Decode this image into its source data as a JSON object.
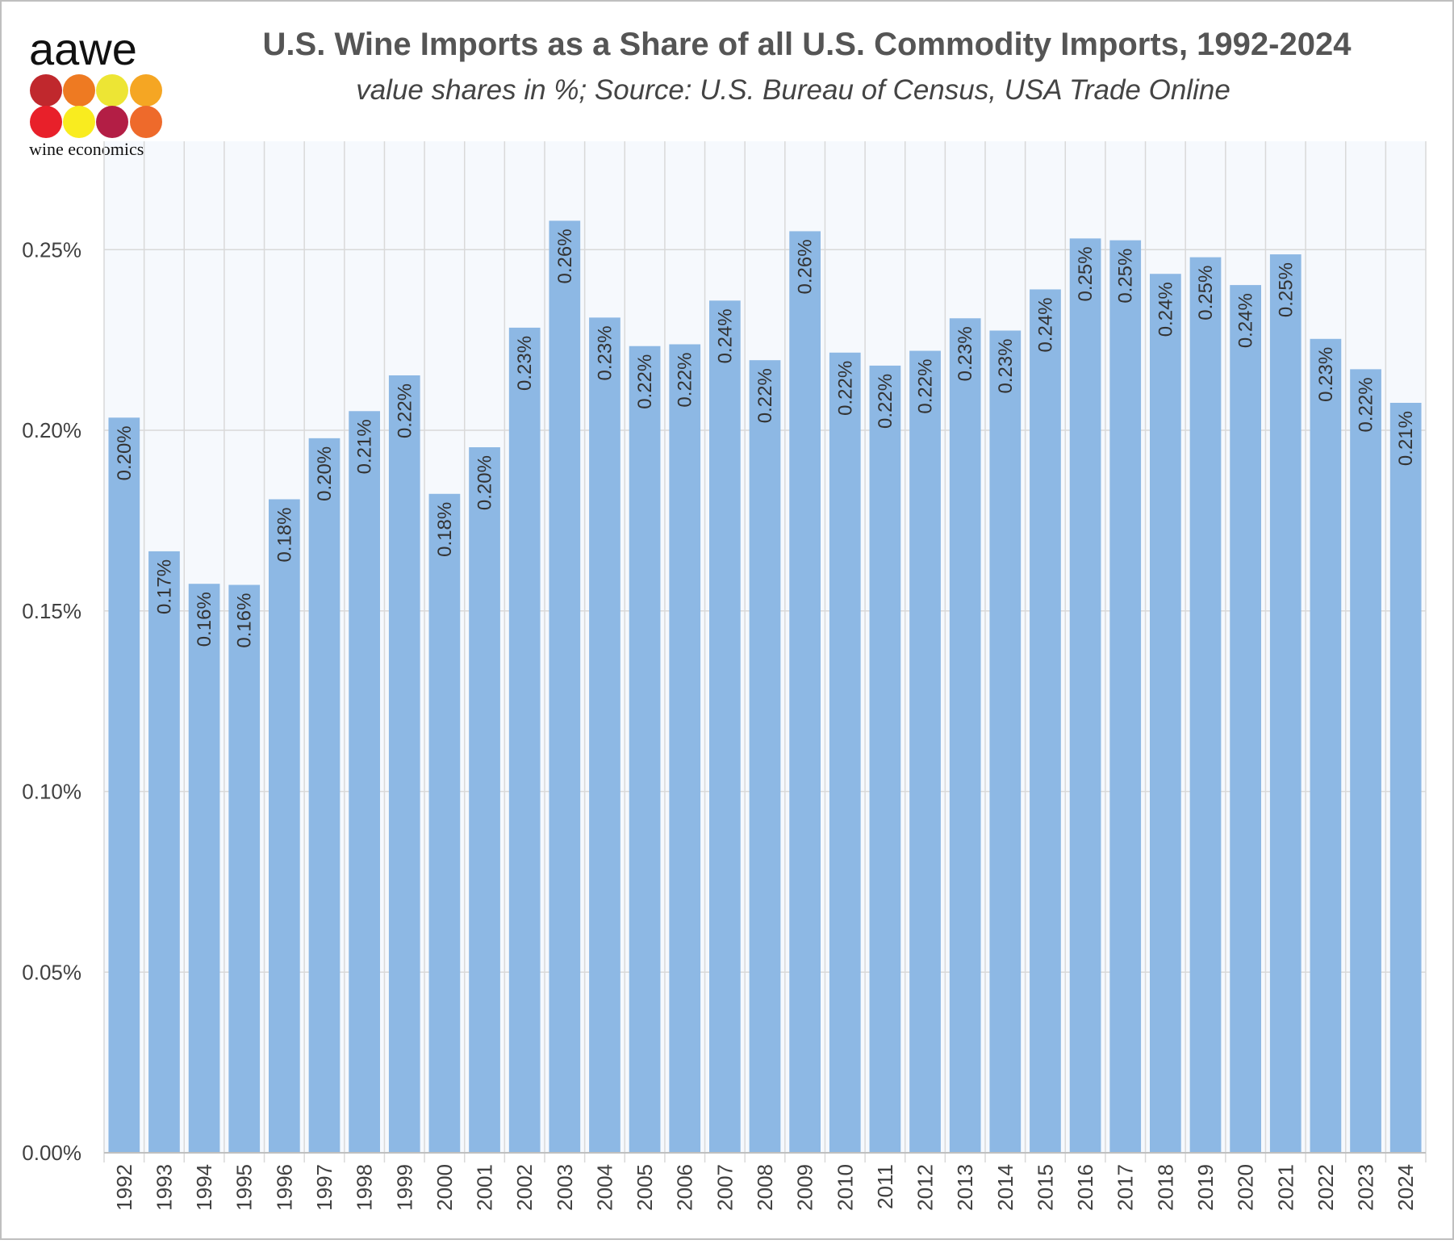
{
  "logo": {
    "text": "aawe",
    "tagline": "wine economics"
  },
  "chart_data": {
    "type": "bar",
    "title": "U.S. Wine Imports as a Share of all U.S. Commodity Imports, 1992-2024",
    "subtitle": "value shares in %; Source: U.S. Bureau of Census, USA Trade Online",
    "categories": [
      "1992",
      "1993",
      "1994",
      "1995",
      "1996",
      "1997",
      "1998",
      "1999",
      "2000",
      "2001",
      "2002",
      "2003",
      "2004",
      "2005",
      "2006",
      "2007",
      "2008",
      "2009",
      "2010",
      "2011",
      "2012",
      "2013",
      "2014",
      "2015",
      "2016",
      "2017",
      "2018",
      "2019",
      "2020",
      "2021",
      "2022",
      "2023",
      "2024"
    ],
    "values": [
      0.2035,
      0.1665,
      0.1575,
      0.1572,
      0.1809,
      0.1978,
      0.2053,
      0.2152,
      0.1824,
      0.1953,
      0.2284,
      0.258,
      0.2312,
      0.2233,
      0.2238,
      0.2359,
      0.2194,
      0.2551,
      0.2215,
      0.2179,
      0.222,
      0.231,
      0.2276,
      0.239,
      0.2531,
      0.2526,
      0.2433,
      0.2479,
      0.2402,
      0.2487,
      0.2253,
      0.2169,
      0.2076
    ],
    "value_labels": [
      "0.20%",
      "0.17%",
      "0.16%",
      "0.16%",
      "0.18%",
      "0.20%",
      "0.21%",
      "0.22%",
      "0.18%",
      "0.20%",
      "0.23%",
      "0.26%",
      "0.23%",
      "0.22%",
      "0.22%",
      "0.24%",
      "0.22%",
      "0.26%",
      "0.22%",
      "0.22%",
      "0.22%",
      "0.23%",
      "0.23%",
      "0.24%",
      "0.25%",
      "0.25%",
      "0.24%",
      "0.25%",
      "0.24%",
      "0.25%",
      "0.23%",
      "0.22%",
      "0.21%"
    ],
    "color": "#8db8e4",
    "ylim": [
      0,
      0.28
    ],
    "yticks": [
      {
        "value": 0,
        "label": "0.00%"
      },
      {
        "value": 0.05,
        "label": "0.05%"
      },
      {
        "value": 0.1,
        "label": "0.10%"
      },
      {
        "value": 0.15,
        "label": "0.15%"
      },
      {
        "value": 0.2,
        "label": "0.20%"
      },
      {
        "value": 0.25,
        "label": "0.25%"
      }
    ],
    "grid": true
  }
}
